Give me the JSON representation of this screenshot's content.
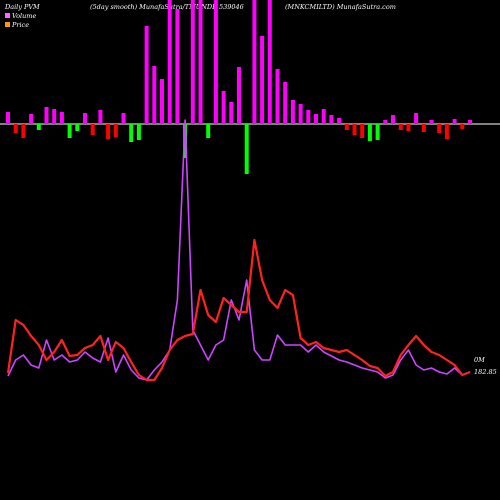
{
  "header": {
    "left": "Daily PVM",
    "mid": "(5day smooth) MunafaSutra/TMUNDE 539046",
    "right": "(MNKCMILTD) MunafaSutra.com"
  },
  "legend": [
    {
      "label": "Volume",
      "color": "#ff66ff"
    },
    {
      "label": "Price",
      "color": "#ff9900"
    }
  ],
  "end_labels": {
    "volume": "0M",
    "price": "182.85"
  },
  "colors": {
    "background": "#000000",
    "axis": "#ffffff",
    "volume_up": "#ff00ff",
    "volume_down": "#ff0000",
    "volume_green": "#00ff00",
    "price_line": "#ff2222",
    "smooth_line": "#cc44ff"
  },
  "chart_data": {
    "type": "bar+line",
    "n": 61,
    "volume_bars": [
      {
        "v": 12,
        "c": "m"
      },
      {
        "v": -9,
        "c": "r"
      },
      {
        "v": -14,
        "c": "r"
      },
      {
        "v": 10,
        "c": "m"
      },
      {
        "v": -6,
        "c": "g"
      },
      {
        "v": 17,
        "c": "m"
      },
      {
        "v": 15,
        "c": "m"
      },
      {
        "v": 12,
        "c": "m"
      },
      {
        "v": -14,
        "c": "g"
      },
      {
        "v": -7,
        "c": "g"
      },
      {
        "v": 11,
        "c": "m"
      },
      {
        "v": -11,
        "c": "r"
      },
      {
        "v": 14,
        "c": "m"
      },
      {
        "v": -15,
        "c": "r"
      },
      {
        "v": -13,
        "c": "r"
      },
      {
        "v": 11,
        "c": "m"
      },
      {
        "v": -18,
        "c": "g"
      },
      {
        "v": -16,
        "c": "g"
      },
      {
        "v": 98,
        "c": "m"
      },
      {
        "v": 58,
        "c": "m"
      },
      {
        "v": 45,
        "c": "m"
      },
      {
        "v": 150,
        "c": "m"
      },
      {
        "v": 115,
        "c": "m"
      },
      {
        "v": -34,
        "c": "g"
      },
      {
        "v": 200,
        "c": "m"
      },
      {
        "v": 150,
        "c": "m"
      },
      {
        "v": -14,
        "c": "g"
      },
      {
        "v": 140,
        "c": "m"
      },
      {
        "v": 33,
        "c": "m"
      },
      {
        "v": 22,
        "c": "m"
      },
      {
        "v": 57,
        "c": "m"
      },
      {
        "v": -50,
        "c": "g"
      },
      {
        "v": 200,
        "c": "m"
      },
      {
        "v": 88,
        "c": "m"
      },
      {
        "v": 200,
        "c": "m"
      },
      {
        "v": 55,
        "c": "m"
      },
      {
        "v": 42,
        "c": "m"
      },
      {
        "v": 24,
        "c": "m"
      },
      {
        "v": 20,
        "c": "m"
      },
      {
        "v": 14,
        "c": "m"
      },
      {
        "v": 10,
        "c": "m"
      },
      {
        "v": 15,
        "c": "m"
      },
      {
        "v": 9,
        "c": "m"
      },
      {
        "v": 6,
        "c": "m"
      },
      {
        "v": -6,
        "c": "r"
      },
      {
        "v": -11,
        "c": "r"
      },
      {
        "v": -14,
        "c": "r"
      },
      {
        "v": -17,
        "c": "g"
      },
      {
        "v": -16,
        "c": "g"
      },
      {
        "v": 4,
        "c": "m"
      },
      {
        "v": 9,
        "c": "m"
      },
      {
        "v": -6,
        "c": "r"
      },
      {
        "v": -7,
        "c": "r"
      },
      {
        "v": 11,
        "c": "m"
      },
      {
        "v": -8,
        "c": "r"
      },
      {
        "v": 4,
        "c": "m"
      },
      {
        "v": -9,
        "c": "r"
      },
      {
        "v": -15,
        "c": "r"
      },
      {
        "v": 5,
        "c": "m"
      },
      {
        "v": -5,
        "c": "r"
      },
      {
        "v": 4,
        "c": "m"
      }
    ],
    "price_line": [
      373,
      320,
      325,
      336,
      345,
      360,
      352,
      340,
      356,
      355,
      348,
      345,
      336,
      360,
      342,
      348,
      362,
      375,
      380,
      380,
      368,
      350,
      340,
      336,
      334,
      290,
      315,
      322,
      298,
      305,
      312,
      312,
      240,
      280,
      300,
      308,
      290,
      295,
      338,
      345,
      342,
      348,
      350,
      352,
      350,
      355,
      360,
      366,
      368,
      376,
      372,
      355,
      345,
      336,
      345,
      352,
      355,
      360,
      365,
      375,
      372
    ],
    "smooth_line": [
      376,
      360,
      355,
      365,
      368,
      340,
      360,
      355,
      362,
      360,
      352,
      358,
      362,
      338,
      372,
      355,
      370,
      378,
      380,
      370,
      362,
      350,
      300,
      120,
      330,
      345,
      360,
      345,
      340,
      300,
      320,
      280,
      350,
      360,
      360,
      335,
      345,
      345,
      345,
      352,
      345,
      352,
      356,
      360,
      362,
      365,
      368,
      370,
      372,
      378,
      375,
      360,
      350,
      365,
      370,
      368,
      372,
      374,
      368,
      375,
      372
    ]
  }
}
